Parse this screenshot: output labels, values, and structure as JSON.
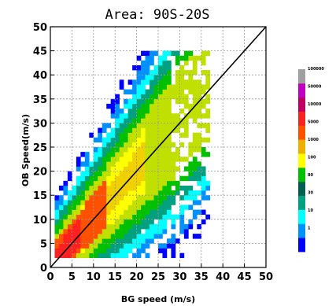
{
  "chart_data": {
    "type": "heatmap",
    "title": "Area: 90S-20S",
    "xlabel": "BG speed (m/s)",
    "ylabel": "OB Speed(m/s)",
    "xlim": [
      0,
      50
    ],
    "ylim": [
      0,
      50
    ],
    "x_ticks": [
      "0",
      "5",
      "10",
      "15",
      "20",
      "25",
      "30",
      "35",
      "40",
      "45",
      "50"
    ],
    "y_ticks": [
      "0",
      "5",
      "10",
      "15",
      "20",
      "25",
      "30",
      "35",
      "40",
      "45",
      "50"
    ],
    "grid": true,
    "bin_width": 1,
    "diagonal_line": {
      "from": [
        0,
        0
      ],
      "to": [
        50,
        50
      ],
      "color": "#000000"
    },
    "colorbar": {
      "placement": "right",
      "colors": [
        "#0000ff",
        "#0090ff",
        "#00ffff",
        "#00a080",
        "#006050",
        "#00c000",
        "#ffff00",
        "#f0b000",
        "#ff5000",
        "#ff2020",
        "#c00060",
        "#c000c0",
        "#a0a0a0"
      ],
      "labels": [
        "1",
        "10",
        "30",
        "80",
        "100",
        "1000",
        "5000",
        "10000",
        "50000",
        "100000"
      ]
    },
    "density_model": {
      "description_note": "",
      "bands": [
        {
          "max_dist": 1.4,
          "color": "#f0d000"
        },
        {
          "max_dist": 2.5,
          "color": "#ffff00"
        },
        {
          "max_dist": 3.5,
          "color": "#c0e000"
        },
        {
          "max_dist": 4.5,
          "color": "#00c000"
        },
        {
          "max_dist": 5.5,
          "color": "#00a080"
        },
        {
          "max_dist": 6.5,
          "color": "#00ffff"
        },
        {
          "max_dist": 7.8,
          "color": "#0090ff"
        },
        {
          "max_dist": 9.5,
          "color": "#0000ff"
        }
      ]
    }
  }
}
